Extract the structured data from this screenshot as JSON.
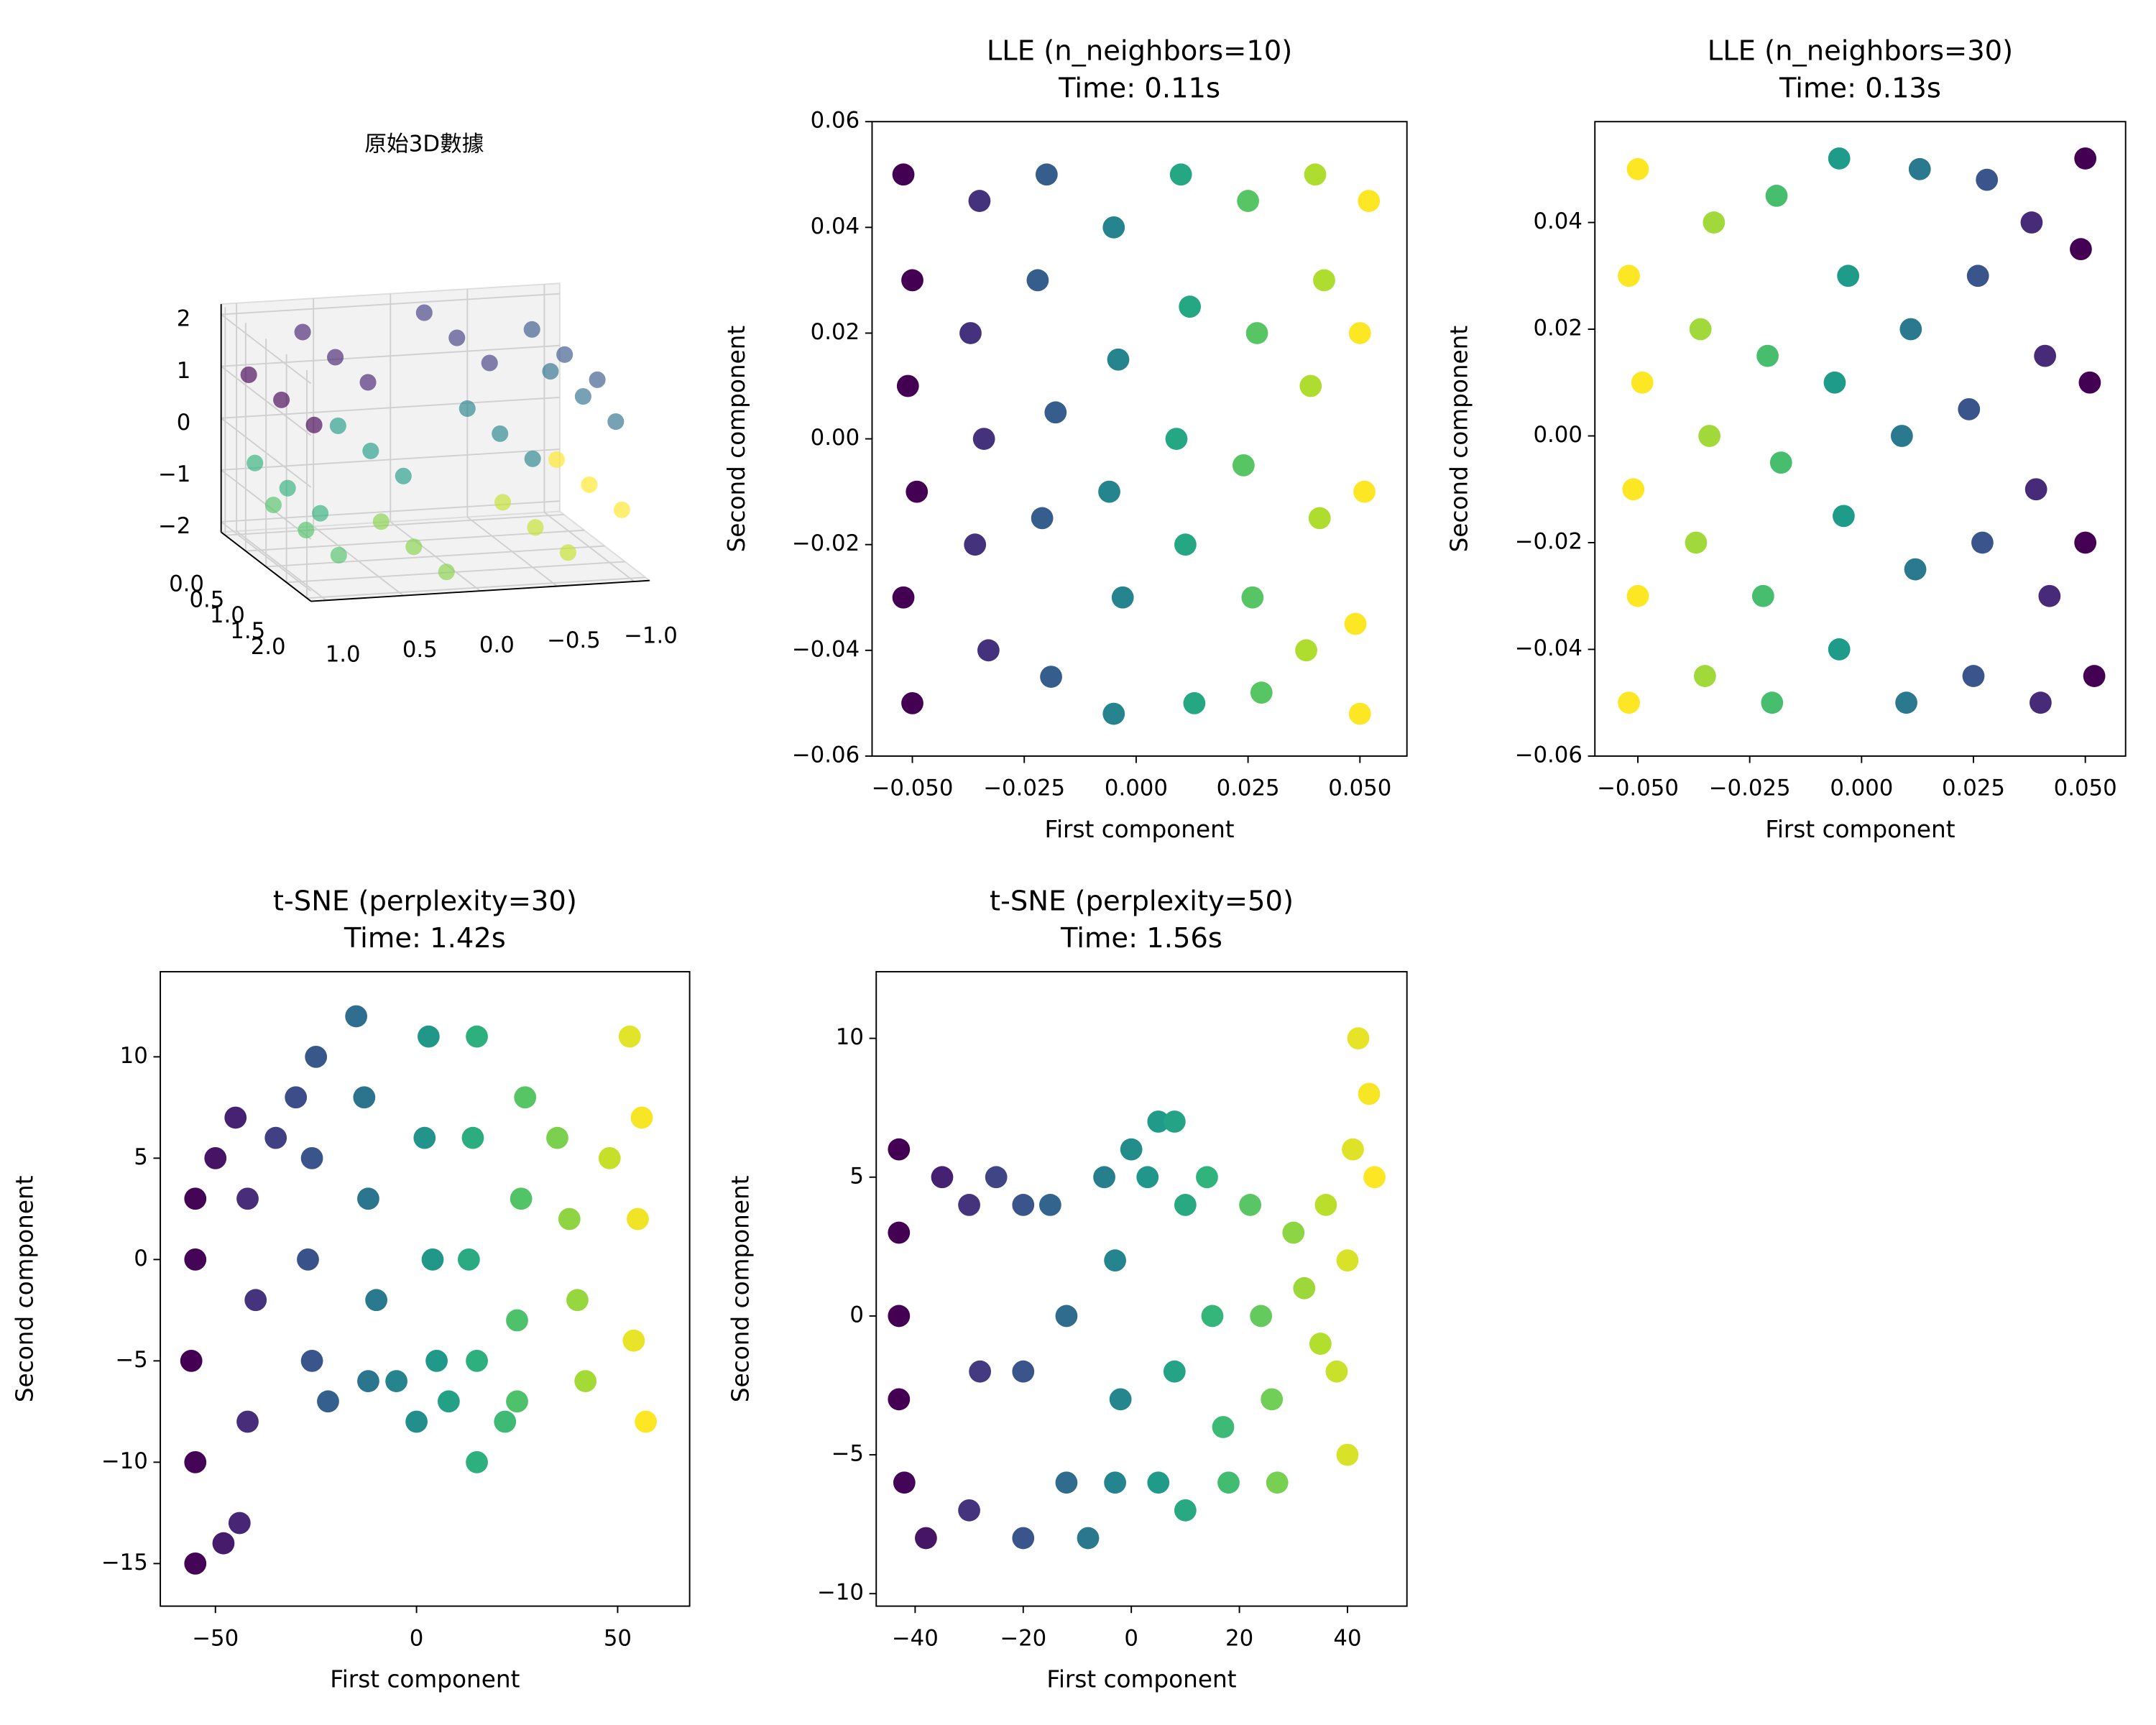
{
  "chart_data": [
    {
      "type": "scatter3d",
      "title": "原始3D數據",
      "colormap": "viridis",
      "x": [
        1.0,
        1.0,
        1.0,
        0.65,
        0.65,
        0.65,
        -0.14,
        -0.14,
        -0.14,
        -0.84,
        -0.84,
        -0.84,
        -0.96,
        -0.96,
        -0.96,
        -0.42,
        -0.42,
        -0.42,
        0.42,
        0.42,
        0.42,
        0.96,
        0.96,
        0.96,
        0.84,
        0.84,
        0.84,
        0.14,
        0.14,
        0.14,
        -0.65,
        -0.65,
        -0.65,
        -1.0,
        -1.0,
        -1.0
      ],
      "y": [
        0.2,
        1.0,
        1.8,
        0.2,
        1.0,
        1.8,
        0.2,
        1.0,
        1.8,
        0.2,
        1.0,
        1.8,
        0.2,
        1.0,
        1.8,
        0.2,
        1.0,
        1.8,
        0.2,
        1.0,
        1.8,
        0.2,
        1.0,
        1.8,
        0.2,
        1.0,
        1.8,
        0.2,
        1.0,
        1.8,
        0.2,
        1.0,
        1.8,
        0.2,
        1.0,
        1.8
      ],
      "z": [
        1.0,
        1.0,
        1.0,
        1.76,
        1.76,
        1.76,
        1.99,
        1.99,
        1.99,
        1.54,
        1.54,
        1.54,
        0.71,
        0.71,
        0.71,
        0.09,
        0.09,
        0.09,
        -0.09,
        -0.09,
        -0.09,
        -0.71,
        -0.71,
        -0.71,
        -1.54,
        -1.54,
        -1.54,
        -1.99,
        -1.99,
        -1.99,
        -1.76,
        -1.76,
        -1.76,
        -1.0,
        -1.0,
        -1.0
      ],
      "c": [
        -4.71,
        -4.71,
        -4.71,
        -3.85,
        -3.85,
        -3.85,
        -3.0,
        -3.0,
        -3.0,
        -2.14,
        -2.14,
        -2.14,
        -1.28,
        -1.28,
        -1.28,
        -0.43,
        -0.43,
        -0.43,
        0.43,
        0.43,
        0.43,
        1.28,
        1.28,
        1.28,
        2.14,
        2.14,
        2.14,
        3.0,
        3.0,
        3.0,
        3.85,
        3.85,
        3.85,
        4.71,
        4.71,
        4.71
      ],
      "xlim": [
        -1.1,
        1.1
      ],
      "ylim": [
        -0.1,
        2.1
      ],
      "zlim": [
        -2.2,
        2.2
      ],
      "xticks": [
        {
          "value": 1,
          "label": "1.0"
        },
        0.5,
        {
          "value": 0,
          "label": "0.0"
        },
        {
          "value": -0.5,
          "label": "−0.5"
        },
        {
          "value": -1,
          "label": "−1.0"
        }
      ],
      "yticks": [
        {
          "value": 0,
          "label": "0.0"
        },
        0.5,
        {
          "value": 1,
          "label": "1.0"
        },
        1.5,
        {
          "value": 2,
          "label": "2.0"
        }
      ],
      "zticks": [
        2,
        1,
        0,
        {
          "value": -1,
          "label": "−1"
        },
        {
          "value": -2,
          "label": "−2"
        }
      ]
    },
    {
      "type": "scatter",
      "title": "LLE (n_neighbors=10)",
      "subtitle": "Time: 0.11s",
      "xlabel": "First component",
      "ylabel": "Second component",
      "colormap": "viridis",
      "x": [
        -0.052,
        -0.05,
        -0.051,
        -0.049,
        -0.052,
        -0.05,
        -0.035,
        -0.037,
        -0.034,
        -0.036,
        -0.033,
        -0.02,
        -0.022,
        -0.018,
        -0.021,
        -0.019,
        -0.005,
        -0.004,
        -0.006,
        -0.003,
        -0.005,
        0.01,
        0.012,
        0.009,
        0.011,
        0.013,
        0.025,
        0.027,
        0.024,
        0.026,
        0.028,
        0.04,
        0.042,
        0.039,
        0.041,
        0.038,
        0.052,
        0.05,
        0.051,
        0.049,
        0.05
      ],
      "y": [
        0.05,
        0.03,
        0.01,
        -0.01,
        -0.03,
        -0.05,
        0.045,
        0.02,
        0.0,
        -0.02,
        -0.04,
        0.05,
        0.03,
        0.005,
        -0.015,
        -0.045,
        0.04,
        0.015,
        -0.01,
        -0.03,
        -0.052,
        0.05,
        0.025,
        0.0,
        -0.02,
        -0.05,
        0.045,
        0.02,
        -0.005,
        -0.03,
        -0.048,
        0.05,
        0.03,
        0.01,
        -0.015,
        -0.04,
        0.045,
        0.02,
        -0.01,
        -0.035,
        -0.052
      ],
      "c": [
        -4.5,
        -4.5,
        -4.5,
        -4.5,
        -4.5,
        -4.5,
        -3.2,
        -3.2,
        -3.2,
        -3.2,
        -3.2,
        -1.8,
        -1.8,
        -1.8,
        -1.8,
        -1.8,
        -0.4,
        -0.4,
        -0.4,
        -0.4,
        -0.4,
        0.9,
        0.9,
        0.9,
        0.9,
        0.9,
        2.2,
        2.2,
        2.2,
        2.2,
        2.2,
        3.5,
        3.5,
        3.5,
        3.5,
        3.5,
        4.6,
        4.6,
        4.6,
        4.6,
        4.6
      ],
      "xlim": [
        -0.059,
        0.0605
      ],
      "ylim": [
        -0.06,
        0.06
      ],
      "xticks": [
        {
          "value": -0.05,
          "label": "−0.050"
        },
        {
          "value": -0.025,
          "label": "−0.025"
        },
        {
          "value": 0,
          "label": "0.000"
        },
        0.025,
        {
          "value": 0.05,
          "label": "0.050"
        }
      ],
      "yticks": [
        0.06,
        0.04,
        0.02,
        {
          "value": 0,
          "label": "0.00"
        },
        {
          "value": -0.02,
          "label": "−0.02"
        },
        {
          "value": -0.04,
          "label": "−0.04"
        },
        {
          "value": -0.06,
          "label": "−0.06"
        }
      ]
    },
    {
      "type": "scatter",
      "title": "LLE (n_neighbors=30)",
      "subtitle": "Time: 0.13s",
      "xlabel": "First component",
      "ylabel": "Second component",
      "colormap": "viridis",
      "x": [
        -0.052,
        -0.05,
        -0.051,
        -0.049,
        -0.052,
        -0.05,
        -0.035,
        -0.037,
        -0.034,
        -0.036,
        -0.033,
        -0.02,
        -0.022,
        -0.018,
        -0.021,
        -0.019,
        -0.005,
        -0.004,
        -0.006,
        -0.003,
        -0.005,
        0.01,
        0.012,
        0.009,
        0.011,
        0.013,
        0.025,
        0.027,
        0.024,
        0.026,
        0.028,
        0.04,
        0.042,
        0.039,
        0.041,
        0.038,
        0.052,
        0.05,
        0.051,
        0.049,
        0.05
      ],
      "y": [
        -0.05,
        -0.03,
        -0.01,
        0.01,
        0.03,
        0.05,
        -0.045,
        -0.02,
        0.0,
        0.02,
        0.04,
        -0.05,
        -0.03,
        -0.005,
        0.015,
        0.045,
        -0.04,
        -0.015,
        0.01,
        0.03,
        0.052,
        -0.05,
        -0.025,
        0.0,
        0.02,
        0.05,
        -0.045,
        -0.02,
        0.005,
        0.03,
        0.048,
        -0.05,
        -0.03,
        -0.01,
        0.015,
        0.04,
        -0.045,
        -0.02,
        0.01,
        0.035,
        0.052
      ],
      "c": [
        4.5,
        4.5,
        4.5,
        4.5,
        4.5,
        4.5,
        3.2,
        3.2,
        3.2,
        3.2,
        3.2,
        1.8,
        1.8,
        1.8,
        1.8,
        1.8,
        0.4,
        0.4,
        0.4,
        0.4,
        0.4,
        -0.9,
        -0.9,
        -0.9,
        -0.9,
        -0.9,
        -2.2,
        -2.2,
        -2.2,
        -2.2,
        -2.2,
        -3.5,
        -3.5,
        -3.5,
        -3.5,
        -3.5,
        -4.6,
        -4.6,
        -4.6,
        -4.6,
        -4.6
      ],
      "xlim": [
        -0.0596,
        0.059
      ],
      "ylim": [
        -0.06,
        0.0589
      ],
      "xticks": [
        {
          "value": -0.05,
          "label": "−0.050"
        },
        {
          "value": -0.025,
          "label": "−0.025"
        },
        {
          "value": 0,
          "label": "0.000"
        },
        0.025,
        {
          "value": 0.05,
          "label": "0.050"
        }
      ],
      "yticks": [
        0.04,
        0.02,
        {
          "value": 0,
          "label": "0.00"
        },
        {
          "value": -0.02,
          "label": "−0.02"
        },
        {
          "value": -0.04,
          "label": "−0.04"
        },
        {
          "value": -0.06,
          "label": "−0.06"
        }
      ]
    },
    {
      "type": "scatter",
      "title": "t-SNE (perplexity=30)",
      "subtitle": "Time: 1.42s",
      "xlabel": "First component",
      "ylabel": "Second component",
      "colormap": "viridis",
      "x": [
        -55,
        -55,
        -56,
        -55,
        -55,
        -50,
        -45,
        -42,
        -40,
        -42,
        -44,
        -48,
        -35,
        -30,
        -25,
        -26,
        -27,
        -26,
        -22,
        -15,
        -13,
        -12,
        -10,
        -12,
        -5,
        0,
        3,
        2,
        4,
        5,
        8,
        15,
        14,
        13,
        15,
        15,
        22,
        27,
        26,
        25,
        25,
        35,
        38,
        40,
        42,
        48,
        53,
        56,
        55,
        54,
        57
      ],
      "y": [
        -15,
        -10,
        -5,
        0,
        3,
        5,
        7,
        3,
        -2,
        -8,
        -13,
        -14,
        6,
        8,
        10,
        5,
        0,
        -5,
        -7,
        12,
        8,
        3,
        -2,
        -6,
        -6,
        -8,
        11,
        6,
        0,
        -5,
        -7,
        11,
        6,
        0,
        -5,
        -10,
        -8,
        8,
        3,
        -3,
        -7,
        6,
        2,
        -2,
        -6,
        5,
        11,
        7,
        2,
        -4,
        -8
      ],
      "c": [
        -4.6,
        -4.6,
        -4.7,
        -4.6,
        -4.6,
        -4.2,
        -3.8,
        -3.5,
        -3.3,
        -3.5,
        -3.7,
        -4.0,
        -2.9,
        -2.5,
        -2.1,
        -2.2,
        -2.3,
        -2.2,
        -1.8,
        -1.3,
        -1.1,
        -1.0,
        -0.8,
        -1.0,
        -0.4,
        0,
        0.3,
        0.2,
        0.3,
        0.4,
        0.7,
        1.3,
        1.2,
        1.1,
        1.3,
        1.3,
        1.8,
        2.3,
        2.2,
        2.1,
        2.1,
        2.9,
        3.2,
        3.3,
        3.5,
        4.0,
        4.4,
        4.7,
        4.6,
        4.5,
        4.8
      ],
      "xlim": [
        -63.7,
        67.9
      ],
      "ylim": [
        -17.1,
        14.2
      ],
      "xticks": [
        {
          "value": -50,
          "label": "−50"
        },
        0,
        50
      ],
      "yticks": [
        10,
        5,
        0,
        {
          "value": -5,
          "label": "−5"
        },
        {
          "value": -10,
          "label": "−10"
        },
        {
          "value": -15,
          "label": "−15"
        }
      ]
    },
    {
      "type": "scatter",
      "title": "t-SNE (perplexity=50)",
      "subtitle": "Time: 1.56s",
      "xlabel": "First component",
      "ylabel": "Second component",
      "colormap": "viridis",
      "x": [
        -43,
        -43,
        -43,
        -43,
        -42,
        -38,
        -35,
        -30,
        -28,
        -30,
        -25,
        -20,
        -20,
        -20,
        -15,
        -12,
        -12,
        -8,
        -5,
        -3,
        -2,
        -3,
        0,
        3,
        5,
        8,
        10,
        8,
        5,
        10,
        14,
        15,
        17,
        18,
        22,
        24,
        26,
        27,
        30,
        32,
        35,
        36,
        38,
        40,
        41,
        42,
        44,
        45,
        40
      ],
      "y": [
        6,
        3,
        0,
        -3,
        -6,
        -8,
        5,
        4,
        -2,
        -7,
        5,
        4,
        -2,
        -8,
        4,
        0,
        -6,
        -8,
        5,
        2,
        -3,
        -6,
        6,
        5,
        7,
        7,
        4,
        -2,
        -6,
        -7,
        5,
        0,
        -4,
        -6,
        4,
        0,
        -3,
        -6,
        3,
        1,
        -1,
        4,
        -2,
        2,
        6,
        10,
        8,
        5,
        -5
      ],
      "c": [
        -4.3,
        -4.3,
        -4.3,
        -4.3,
        -4.2,
        -3.8,
        -3.5,
        -3.0,
        -2.8,
        -3.0,
        -2.5,
        -2.0,
        -2.0,
        -2.0,
        -1.5,
        -1.2,
        -1.2,
        -0.8,
        -0.5,
        -0.3,
        -0.2,
        -0.3,
        0,
        0.3,
        0.5,
        0.8,
        1.0,
        0.8,
        0.5,
        1.0,
        1.4,
        1.5,
        1.7,
        1.8,
        2.2,
        2.4,
        2.6,
        2.7,
        3.0,
        3.2,
        3.5,
        3.6,
        3.8,
        4.0,
        4.1,
        4.2,
        4.4,
        4.5,
        4.0
      ],
      "xlim": [
        -47.2,
        51.0
      ],
      "ylim": [
        -10.45,
        12.4
      ],
      "xticks": [
        {
          "value": -40,
          "label": "−40"
        },
        {
          "value": -20,
          "label": "−20"
        },
        0,
        20,
        40
      ],
      "yticks": [
        10,
        5,
        0,
        {
          "value": -5,
          "label": "−5"
        },
        {
          "value": -10,
          "label": "−10"
        }
      ]
    }
  ]
}
